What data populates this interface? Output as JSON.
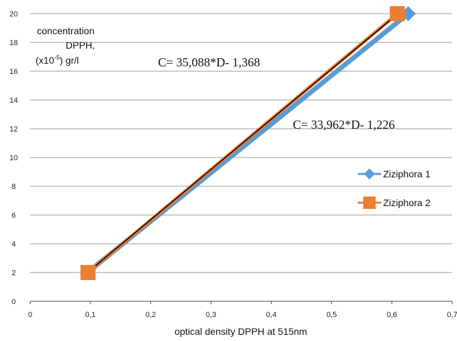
{
  "chart_data": {
    "type": "line",
    "xlabel": "optical density DPPH at 515nm",
    "ylabel_lines": [
      "concentration",
      "DPPH,",
      "(x10",
      "-5",
      ") gr/l"
    ],
    "xlim": [
      0,
      0.7
    ],
    "ylim": [
      0,
      20
    ],
    "x_ticks": [
      "0",
      "0,1",
      "0,2",
      "0,3",
      "0,4",
      "0,5",
      "0,6",
      "0,7"
    ],
    "y_ticks": [
      "0",
      "2",
      "4",
      "6",
      "8",
      "10",
      "12",
      "14",
      "16",
      "18",
      "20"
    ],
    "grid": "horizontal",
    "legend_position": "right",
    "series": [
      {
        "name": "Ziziphora 1",
        "color": "#5b9bd5",
        "marker": "diamond",
        "x": [
          0.095,
          0.627
        ],
        "y": [
          2,
          20
        ]
      },
      {
        "name": "Ziziphora 2",
        "color": "#ed7d31",
        "marker": "square",
        "x": [
          0.096,
          0.609
        ],
        "y": [
          2,
          20
        ]
      }
    ],
    "trendline": {
      "color": "#000000",
      "x": [
        0.095,
        0.61
      ],
      "y": [
        2,
        20
      ]
    },
    "annotations": [
      {
        "text": "C= 35,088*D- 1,368"
      },
      {
        "text": "C= 33,962*D- 1,226"
      }
    ]
  }
}
